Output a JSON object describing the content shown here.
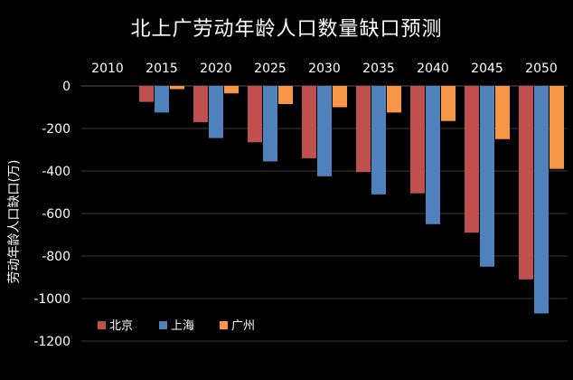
{
  "chart_data": {
    "type": "bar",
    "title": "北上广劳动年龄人口数量缺口预测",
    "ylabel": "劳动年龄人口缺口(万)",
    "xlabel": "",
    "categories": [
      "2010",
      "2015",
      "2020",
      "2025",
      "2030",
      "2035",
      "2040",
      "2045",
      "2050"
    ],
    "series": [
      {
        "name": "北京",
        "color": "#c0504d",
        "values": [
          0,
          -75,
          -170,
          -265,
          -340,
          -405,
          -505,
          -690,
          -910
        ]
      },
      {
        "name": "上海",
        "color": "#4f81bd",
        "values": [
          0,
          -125,
          -245,
          -355,
          -425,
          -510,
          -650,
          -850,
          -1070
        ]
      },
      {
        "name": "广州",
        "color": "#f79646",
        "values": [
          0,
          -15,
          -35,
          -85,
          -100,
          -125,
          -165,
          -250,
          -390
        ]
      }
    ],
    "ylim": [
      -1200,
      0
    ],
    "yticks": [
      0,
      -200,
      -400,
      -600,
      -800,
      -1000,
      -1200
    ],
    "ytick_labels": [
      "0",
      "-200",
      "-400",
      "-600",
      "-800",
      "-1000",
      "-1200"
    ],
    "x_axis_position": "top",
    "grid": true,
    "legend_position": "bottom-left",
    "background": "#000000",
    "gridline_color": "#3a3a3a"
  }
}
